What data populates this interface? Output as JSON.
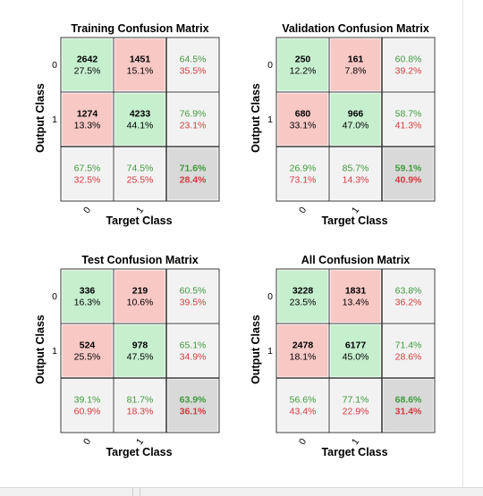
{
  "colors": {
    "correct_bg": "#c6efce",
    "wrong_bg": "#f8c8c4",
    "summary_bg": "#f2f2f2",
    "overall_bg": "#d9d9d9",
    "pct_good": "#3f9a3f",
    "pct_bad": "#d6393c",
    "text": "#000000",
    "grid_line": "#3a3a3a"
  },
  "chart_data": [
    {
      "type": "table",
      "title": "Training Confusion Matrix",
      "xlabel": "Target Class",
      "ylabel": "Output Class",
      "x_tick_labels": [
        "0",
        "1"
      ],
      "y_tick_labels": [
        "0",
        "1"
      ],
      "cells": [
        [
          {
            "count": "2642",
            "pct": "27.5%"
          },
          {
            "count": "1451",
            "pct": "15.1%"
          }
        ],
        [
          {
            "count": "1274",
            "pct": "13.3%"
          },
          {
            "count": "4233",
            "pct": "44.1%"
          }
        ]
      ],
      "row_summary": [
        {
          "good": "64.5%",
          "bad": "35.5%"
        },
        {
          "good": "76.9%",
          "bad": "23.1%"
        }
      ],
      "col_summary": [
        {
          "good": "67.5%",
          "bad": "32.5%"
        },
        {
          "good": "74.5%",
          "bad": "25.5%"
        }
      ],
      "overall": {
        "good": "71.6%",
        "bad": "28.4%"
      }
    },
    {
      "type": "table",
      "title": "Validation Confusion Matrix",
      "xlabel": "Target Class",
      "ylabel": "Output Class",
      "x_tick_labels": [
        "0",
        "1"
      ],
      "y_tick_labels": [
        "0",
        "1"
      ],
      "cells": [
        [
          {
            "count": "250",
            "pct": "12.2%"
          },
          {
            "count": "161",
            "pct": "7.8%"
          }
        ],
        [
          {
            "count": "680",
            "pct": "33.1%"
          },
          {
            "count": "966",
            "pct": "47.0%"
          }
        ]
      ],
      "row_summary": [
        {
          "good": "60.8%",
          "bad": "39.2%"
        },
        {
          "good": "58.7%",
          "bad": "41.3%"
        }
      ],
      "col_summary": [
        {
          "good": "26.9%",
          "bad": "73.1%"
        },
        {
          "good": "85.7%",
          "bad": "14.3%"
        }
      ],
      "overall": {
        "good": "59.1%",
        "bad": "40.9%"
      }
    },
    {
      "type": "table",
      "title": "Test Confusion Matrix",
      "xlabel": "Target Class",
      "ylabel": "Output Class",
      "x_tick_labels": [
        "0",
        "1"
      ],
      "y_tick_labels": [
        "0",
        "1"
      ],
      "cells": [
        [
          {
            "count": "336",
            "pct": "16.3%"
          },
          {
            "count": "219",
            "pct": "10.6%"
          }
        ],
        [
          {
            "count": "524",
            "pct": "25.5%"
          },
          {
            "count": "978",
            "pct": "47.5%"
          }
        ]
      ],
      "row_summary": [
        {
          "good": "60.5%",
          "bad": "39.5%"
        },
        {
          "good": "65.1%",
          "bad": "34.9%"
        }
      ],
      "col_summary": [
        {
          "good": "39.1%",
          "bad": "60.9%"
        },
        {
          "good": "81.7%",
          "bad": "18.3%"
        }
      ],
      "overall": {
        "good": "63.9%",
        "bad": "36.1%"
      }
    },
    {
      "type": "table",
      "title": "All Confusion Matrix",
      "xlabel": "Target Class",
      "ylabel": "Output Class",
      "x_tick_labels": [
        "0",
        "1"
      ],
      "y_tick_labels": [
        "0",
        "1"
      ],
      "cells": [
        [
          {
            "count": "3228",
            "pct": "23.5%"
          },
          {
            "count": "1831",
            "pct": "13.4%"
          }
        ],
        [
          {
            "count": "2478",
            "pct": "18.1%"
          },
          {
            "count": "6177",
            "pct": "45.0%"
          }
        ]
      ],
      "row_summary": [
        {
          "good": "63.8%",
          "bad": "36.2%"
        },
        {
          "good": "71.4%",
          "bad": "28.6%"
        }
      ],
      "col_summary": [
        {
          "good": "56.6%",
          "bad": "43.4%"
        },
        {
          "good": "77.1%",
          "bad": "22.9%"
        }
      ],
      "overall": {
        "good": "68.6%",
        "bad": "31.4%"
      }
    }
  ]
}
